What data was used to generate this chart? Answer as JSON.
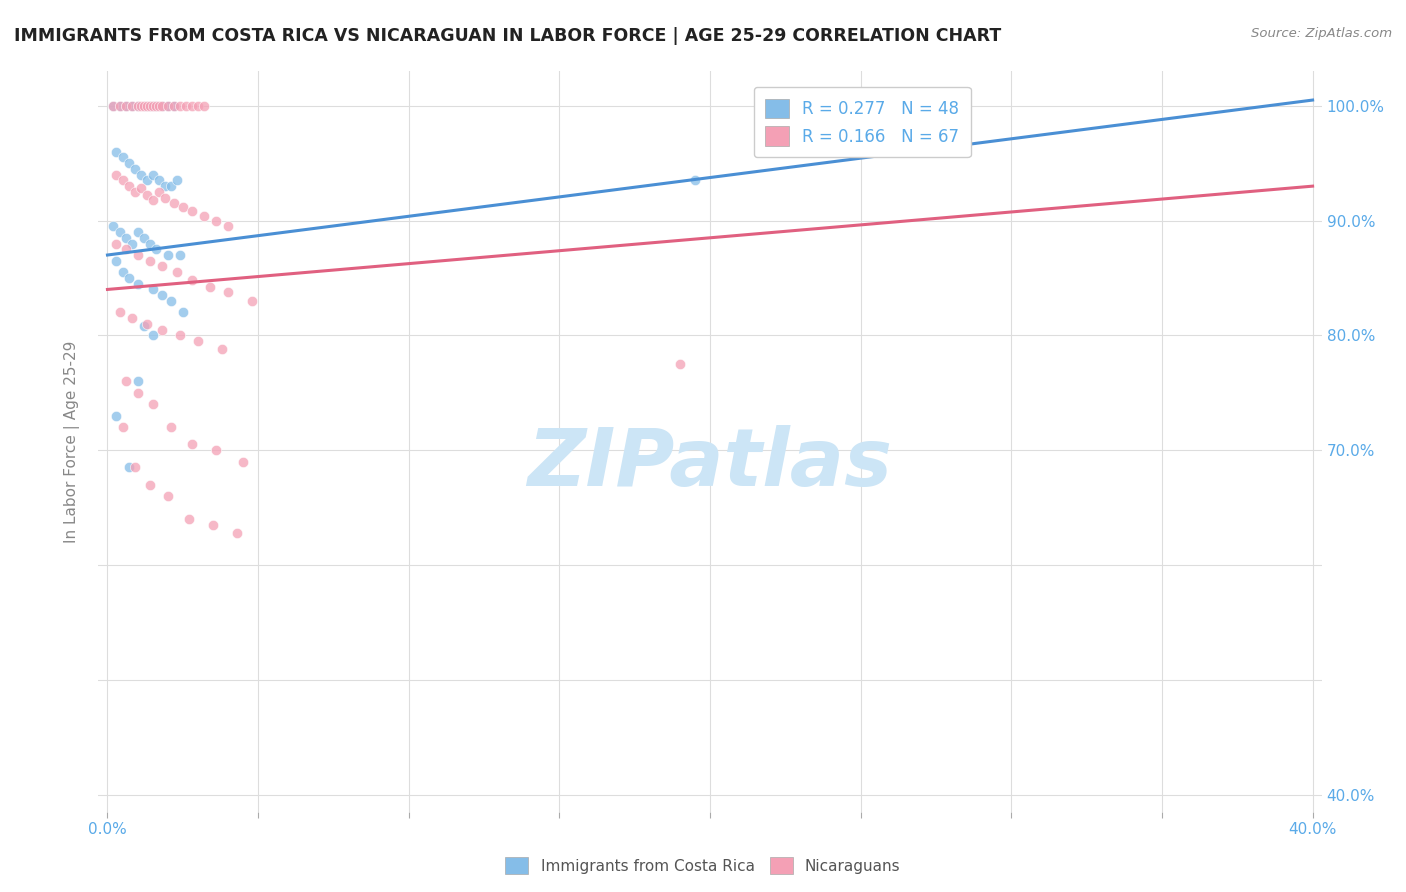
{
  "title": "IMMIGRANTS FROM COSTA RICA VS NICARAGUAN IN LABOR FORCE | AGE 25-29 CORRELATION CHART",
  "source": "Source: ZipAtlas.com",
  "ylabel_label": "In Labor Force | Age 25-29",
  "x_min": -0.003,
  "x_max": 0.403,
  "y_min": 0.385,
  "y_max": 1.03,
  "x_tick_positions": [
    0.0,
    0.05,
    0.1,
    0.15,
    0.2,
    0.25,
    0.3,
    0.35,
    0.4
  ],
  "x_tick_labels": [
    "0.0%",
    "",
    "",
    "",
    "",
    "",
    "",
    "",
    "40.0%"
  ],
  "y_tick_positions": [
    0.4,
    0.5,
    0.6,
    0.7,
    0.8,
    0.9,
    1.0
  ],
  "y_tick_labels": [
    "40.0%",
    "",
    "",
    "70.0%",
    "80.0%",
    "90.0%",
    "100.0%"
  ],
  "costa_rica_R": 0.277,
  "costa_rica_N": 48,
  "nicaraguan_R": 0.166,
  "nicaraguan_N": 67,
  "costa_rica_color": "#85bde8",
  "nicaraguan_color": "#f4a0b5",
  "costa_rica_line_color": "#4a8fd4",
  "nicaraguan_line_color": "#e06080",
  "watermark": "ZIPatlas",
  "watermark_color": "#cce5f6",
  "grid_color": "#dddddd",
  "blue_text_color": "#5aaae8",
  "costa_rica_scatter_x": [
    0.002,
    0.004,
    0.006,
    0.008,
    0.01,
    0.012,
    0.013,
    0.014,
    0.015,
    0.016,
    0.018,
    0.02,
    0.022,
    0.003,
    0.005,
    0.007,
    0.009,
    0.011,
    0.013,
    0.015,
    0.017,
    0.019,
    0.021,
    0.023,
    0.002,
    0.004,
    0.006,
    0.008,
    0.01,
    0.012,
    0.014,
    0.016,
    0.02,
    0.024,
    0.003,
    0.005,
    0.007,
    0.01,
    0.015,
    0.018,
    0.021,
    0.025,
    0.012,
    0.015,
    0.195,
    0.003,
    0.007,
    0.01
  ],
  "costa_rica_scatter_y": [
    1.0,
    1.0,
    1.0,
    1.0,
    1.0,
    1.0,
    1.0,
    1.0,
    1.0,
    1.0,
    1.0,
    1.0,
    1.0,
    0.96,
    0.955,
    0.95,
    0.945,
    0.94,
    0.935,
    0.94,
    0.935,
    0.93,
    0.93,
    0.935,
    0.895,
    0.89,
    0.885,
    0.88,
    0.89,
    0.885,
    0.88,
    0.875,
    0.87,
    0.87,
    0.865,
    0.855,
    0.85,
    0.845,
    0.84,
    0.835,
    0.83,
    0.82,
    0.808,
    0.8,
    0.935,
    0.73,
    0.685,
    0.76
  ],
  "nicaraguan_scatter_x": [
    0.002,
    0.004,
    0.006,
    0.008,
    0.01,
    0.011,
    0.012,
    0.013,
    0.014,
    0.015,
    0.016,
    0.017,
    0.018,
    0.02,
    0.022,
    0.024,
    0.026,
    0.028,
    0.03,
    0.032,
    0.003,
    0.005,
    0.007,
    0.009,
    0.011,
    0.013,
    0.015,
    0.017,
    0.019,
    0.022,
    0.025,
    0.028,
    0.032,
    0.036,
    0.04,
    0.003,
    0.006,
    0.01,
    0.014,
    0.018,
    0.023,
    0.028,
    0.034,
    0.04,
    0.048,
    0.004,
    0.008,
    0.013,
    0.018,
    0.024,
    0.03,
    0.038,
    0.19,
    0.006,
    0.01,
    0.015,
    0.021,
    0.028,
    0.036,
    0.045,
    0.005,
    0.009,
    0.014,
    0.02,
    0.027,
    0.035,
    0.043
  ],
  "nicaraguan_scatter_y": [
    1.0,
    1.0,
    1.0,
    1.0,
    1.0,
    1.0,
    1.0,
    1.0,
    1.0,
    1.0,
    1.0,
    1.0,
    1.0,
    1.0,
    1.0,
    1.0,
    1.0,
    1.0,
    1.0,
    1.0,
    0.94,
    0.935,
    0.93,
    0.925,
    0.928,
    0.922,
    0.918,
    0.925,
    0.92,
    0.915,
    0.912,
    0.908,
    0.904,
    0.9,
    0.895,
    0.88,
    0.875,
    0.87,
    0.865,
    0.86,
    0.855,
    0.848,
    0.842,
    0.838,
    0.83,
    0.82,
    0.815,
    0.81,
    0.805,
    0.8,
    0.795,
    0.788,
    0.775,
    0.76,
    0.75,
    0.74,
    0.72,
    0.705,
    0.7,
    0.69,
    0.72,
    0.685,
    0.67,
    0.66,
    0.64,
    0.635,
    0.628
  ]
}
